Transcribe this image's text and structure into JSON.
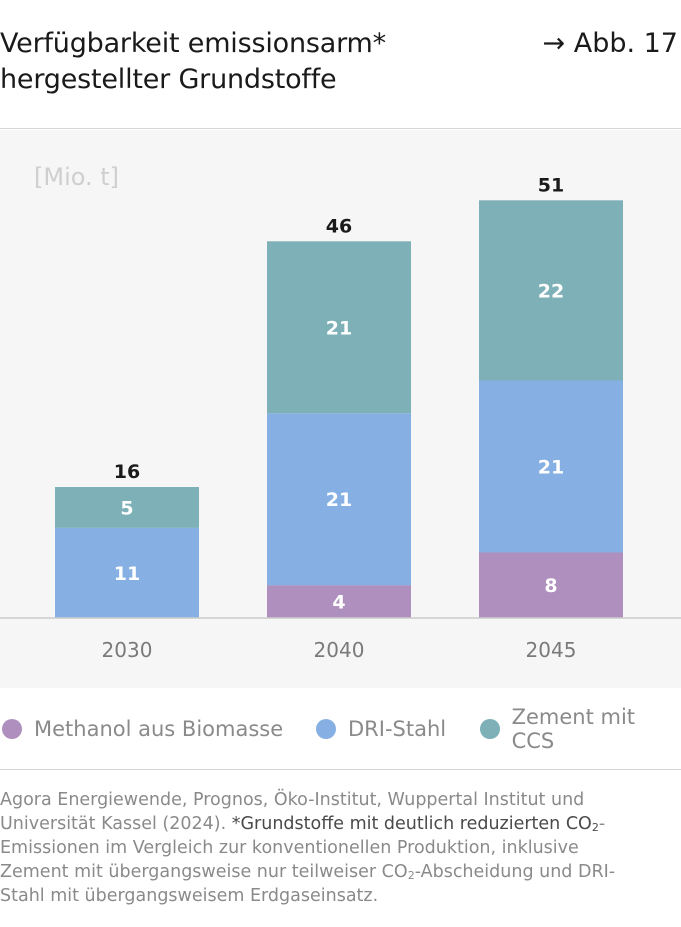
{
  "header": {
    "title_line1": "Verfügbarkeit emissionsarm*",
    "title_line2": "hergestellter Grundstoffe",
    "figure_ref": "→ Abb. 17"
  },
  "chart_data": {
    "type": "bar",
    "stacked": true,
    "unit_label": "[Mio. t]",
    "categories": [
      "2030",
      "2040",
      "2045"
    ],
    "series": [
      {
        "name": "Methanol aus Biomasse",
        "color": "#ae8fbd",
        "values": [
          0,
          4,
          8
        ]
      },
      {
        "name": "DRI-Stahl",
        "color": "#86b0e3",
        "values": [
          11,
          21,
          21
        ]
      },
      {
        "name": "Zement mit CCS",
        "color": "#7eb0b8",
        "values": [
          5,
          21,
          22
        ]
      }
    ],
    "totals": [
      16,
      46,
      51
    ],
    "ylim": [
      0,
      55
    ]
  },
  "legend": {
    "items": [
      {
        "label": "Methanol aus Biomasse",
        "color": "#ae8fbd"
      },
      {
        "label": "DRI-Stahl",
        "color": "#86b0e3"
      },
      {
        "label": "Zement mit CCS",
        "color": "#7eb0b8"
      }
    ]
  },
  "source": {
    "line1": "Agora Energiewende, Prognos, Öko-Institut, Wuppertal Institut und",
    "line2_a": "Universität Kassel (2024).",
    "line2_b": "*Grundstoffe mit deutlich reduzierten CO",
    "line2_sub": "2",
    "line2_c": "-",
    "line3": "Emissionen im Vergleich zur konventionellen Produktion, inklusive",
    "line4_a": "Zement mit übergangsweise nur teilweiser CO",
    "line4_sub": "2",
    "line4_b": "-Abscheidung und DRI-",
    "line5": "Stahl mit übergangsweisem Erdgaseinsatz."
  }
}
